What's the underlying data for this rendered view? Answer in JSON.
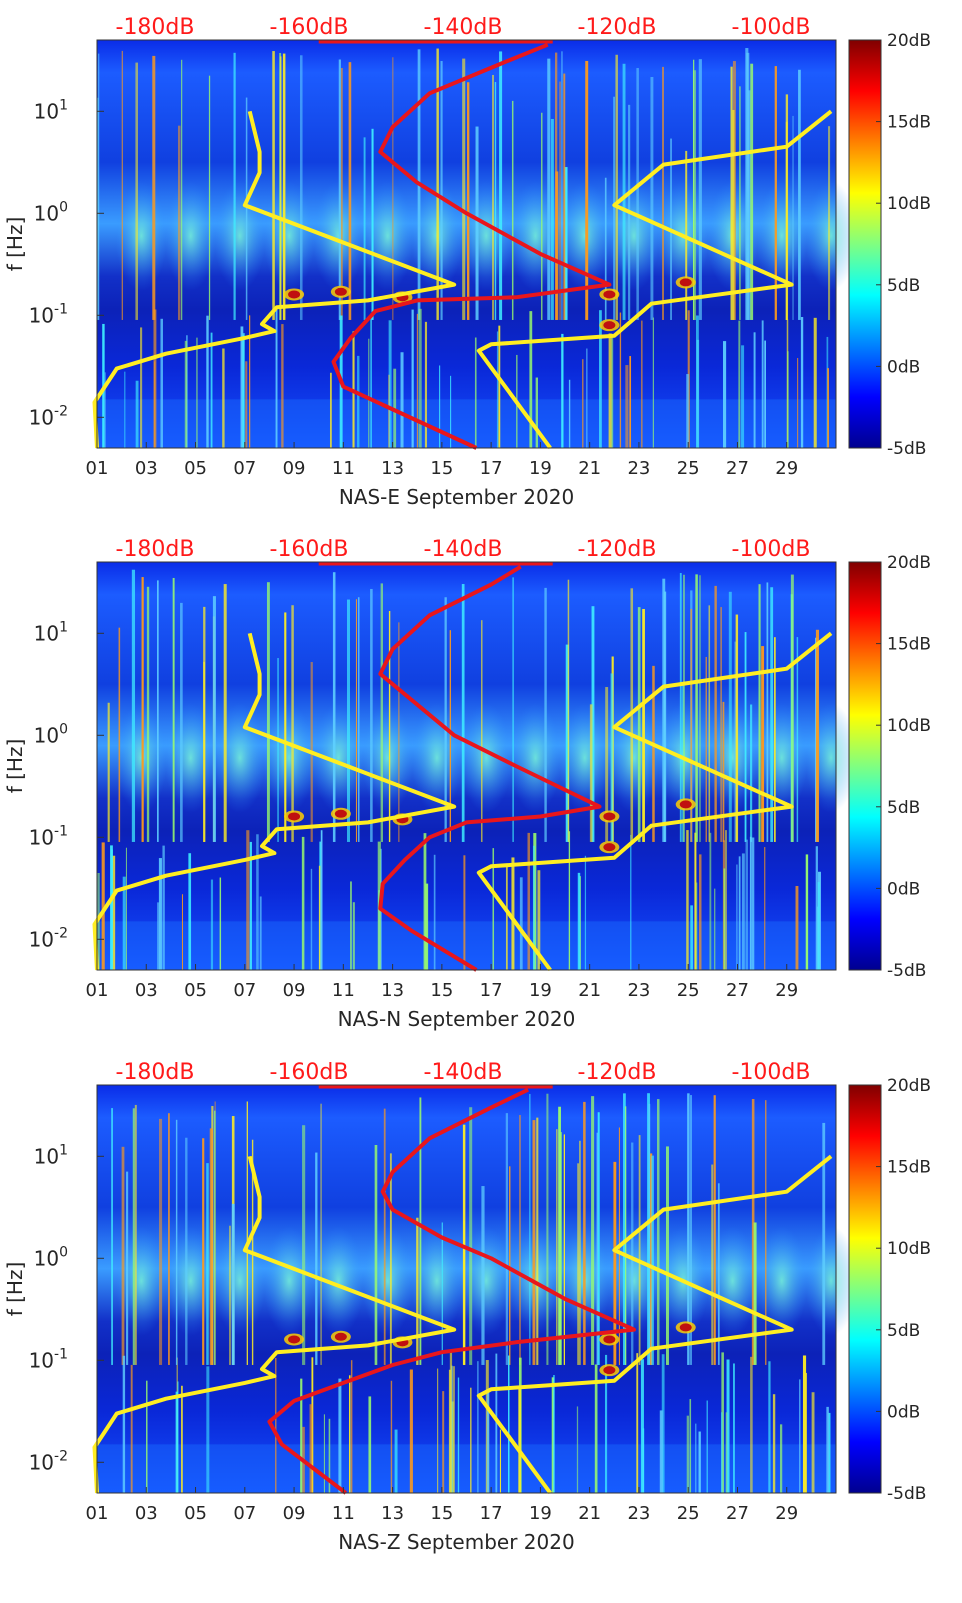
{
  "colors": {
    "db_scale": "#ff1a1a",
    "noise_model": "#ffee22",
    "psd_curve": "#e8161c",
    "axis": "#333333",
    "colormap": [
      "#00008f",
      "#0000ff",
      "#0080ff",
      "#00ffff",
      "#80ff80",
      "#ffff00",
      "#ff8000",
      "#ff0000",
      "#800000"
    ]
  },
  "chart_data": [
    {
      "type": "heatmap",
      "title": "NAS-E September 2020",
      "xlabel": "NAS-E September 2020",
      "ylabel": "f [Hz]",
      "x_ticks": [
        "01",
        "03",
        "05",
        "07",
        "09",
        "11",
        "13",
        "15",
        "17",
        "19",
        "21",
        "23",
        "25",
        "27",
        "29"
      ],
      "y_ticks": [
        "10^1",
        "10^0",
        "10^-1",
        "10^-2"
      ],
      "y_tick_values": [
        10,
        1,
        0.1,
        0.01
      ],
      "ylim": [
        0.005,
        50
      ],
      "xlim": [
        1,
        31
      ],
      "db_scale_labels": [
        "-180dB",
        "-160dB",
        "-140dB",
        "-120dB",
        "-100dB"
      ],
      "colorbar_labels": [
        "20dB",
        "15dB",
        "10dB",
        "5dB",
        "0dB",
        "-5dB"
      ],
      "colorbar_range": [
        -5,
        20
      ],
      "series": [
        {
          "name": "noise model",
          "color": "yellow",
          "points": [
            [
              1,
              0.005
            ],
            [
              0.9,
              0.014
            ],
            [
              1.8,
              0.03
            ],
            [
              3.8,
              0.042
            ],
            [
              7,
              0.06
            ],
            [
              8.2,
              0.07
            ],
            [
              7.7,
              0.082
            ],
            [
              8.3,
              0.12
            ],
            [
              12,
              0.14
            ],
            [
              15.5,
              0.2
            ],
            [
              7,
              1.2
            ],
            [
              7.6,
              2.5
            ],
            [
              7.6,
              4
            ],
            [
              7.2,
              10
            ]
          ]
        },
        {
          "name": "noise model",
          "color": "yellow",
          "points": [
            [
              19.4,
              0.005
            ],
            [
              16.5,
              0.045
            ],
            [
              17,
              0.052
            ],
            [
              22,
              0.063
            ],
            [
              23.5,
              0.13
            ],
            [
              29.2,
              0.2
            ],
            [
              22,
              1.2
            ],
            [
              24,
              3
            ],
            [
              29,
              4.5
            ],
            [
              30.8,
              10
            ]
          ]
        },
        {
          "name": "PSD",
          "color": "red",
          "points": [
            [
              16.4,
              0.005
            ],
            [
              11,
              0.02
            ],
            [
              10.6,
              0.035
            ],
            [
              11.3,
              0.06
            ],
            [
              12.3,
              0.11
            ],
            [
              14,
              0.14
            ],
            [
              18,
              0.15
            ],
            [
              21.8,
              0.2
            ],
            [
              19,
              0.4
            ],
            [
              16,
              1
            ],
            [
              14,
              2
            ],
            [
              12.5,
              4
            ],
            [
              13,
              7
            ],
            [
              14.5,
              15
            ],
            [
              17.5,
              30
            ],
            [
              19.3,
              45
            ]
          ]
        }
      ]
    },
    {
      "type": "heatmap",
      "title": "NAS-N September 2020",
      "xlabel": "NAS-N September 2020",
      "ylabel": "f [Hz]",
      "x_ticks": [
        "01",
        "03",
        "05",
        "07",
        "09",
        "11",
        "13",
        "15",
        "17",
        "19",
        "21",
        "23",
        "25",
        "27",
        "29"
      ],
      "y_ticks": [
        "10^1",
        "10^0",
        "10^-1",
        "10^-2"
      ],
      "y_tick_values": [
        10,
        1,
        0.1,
        0.01
      ],
      "ylim": [
        0.005,
        50
      ],
      "xlim": [
        1,
        31
      ],
      "db_scale_labels": [
        "-180dB",
        "-160dB",
        "-140dB",
        "-120dB",
        "-100dB"
      ],
      "colorbar_labels": [
        "20dB",
        "15dB",
        "10dB",
        "5dB",
        "0dB",
        "-5dB"
      ],
      "colorbar_range": [
        -5,
        20
      ],
      "series": [
        {
          "name": "noise model",
          "color": "yellow",
          "points": [
            [
              1,
              0.005
            ],
            [
              0.9,
              0.014
            ],
            [
              1.8,
              0.03
            ],
            [
              3.8,
              0.042
            ],
            [
              7,
              0.06
            ],
            [
              8.2,
              0.07
            ],
            [
              7.7,
              0.082
            ],
            [
              8.3,
              0.12
            ],
            [
              12,
              0.14
            ],
            [
              15.5,
              0.2
            ],
            [
              7,
              1.2
            ],
            [
              7.6,
              2.5
            ],
            [
              7.6,
              4
            ],
            [
              7.2,
              10
            ]
          ]
        },
        {
          "name": "noise model",
          "color": "yellow",
          "points": [
            [
              19.4,
              0.005
            ],
            [
              16.5,
              0.045
            ],
            [
              17,
              0.052
            ],
            [
              22,
              0.063
            ],
            [
              23.5,
              0.13
            ],
            [
              29.2,
              0.2
            ],
            [
              22,
              1.2
            ],
            [
              24,
              3
            ],
            [
              29,
              4.5
            ],
            [
              30.8,
              10
            ]
          ]
        },
        {
          "name": "PSD",
          "color": "red",
          "points": [
            [
              16.4,
              0.005
            ],
            [
              13.8,
              0.012
            ],
            [
              12.5,
              0.02
            ],
            [
              12.6,
              0.035
            ],
            [
              13.5,
              0.06
            ],
            [
              14.5,
              0.1
            ],
            [
              16,
              0.14
            ],
            [
              19,
              0.16
            ],
            [
              21.4,
              0.2
            ],
            [
              18,
              0.5
            ],
            [
              15.5,
              1
            ],
            [
              14,
              2
            ],
            [
              12.5,
              4
            ],
            [
              13,
              7
            ],
            [
              14.5,
              15
            ],
            [
              17,
              30
            ],
            [
              18.2,
              45
            ]
          ]
        }
      ]
    },
    {
      "type": "heatmap",
      "title": "NAS-Z September 2020",
      "xlabel": "NAS-Z September 2020",
      "ylabel": "f [Hz]",
      "x_ticks": [
        "01",
        "03",
        "05",
        "07",
        "09",
        "11",
        "13",
        "15",
        "17",
        "19",
        "21",
        "23",
        "25",
        "27",
        "29"
      ],
      "y_ticks": [
        "10^1",
        "10^0",
        "10^-1",
        "10^-2"
      ],
      "y_tick_values": [
        10,
        1,
        0.1,
        0.01
      ],
      "ylim": [
        0.005,
        50
      ],
      "xlim": [
        1,
        31
      ],
      "db_scale_labels": [
        "-180dB",
        "-160dB",
        "-140dB",
        "-120dB",
        "-100dB"
      ],
      "colorbar_labels": [
        "20dB",
        "15dB",
        "10dB",
        "5dB",
        "0dB",
        "-5dB"
      ],
      "colorbar_range": [
        -5,
        20
      ],
      "series": [
        {
          "name": "noise model",
          "color": "yellow",
          "points": [
            [
              1,
              0.005
            ],
            [
              0.9,
              0.014
            ],
            [
              1.8,
              0.03
            ],
            [
              3.8,
              0.042
            ],
            [
              7,
              0.06
            ],
            [
              8.2,
              0.07
            ],
            [
              7.7,
              0.082
            ],
            [
              8.3,
              0.12
            ],
            [
              12,
              0.14
            ],
            [
              15.5,
              0.2
            ],
            [
              7,
              1.2
            ],
            [
              7.6,
              2.5
            ],
            [
              7.6,
              4
            ],
            [
              7.2,
              10
            ]
          ]
        },
        {
          "name": "noise model",
          "color": "yellow",
          "points": [
            [
              19.4,
              0.005
            ],
            [
              16.5,
              0.045
            ],
            [
              17,
              0.052
            ],
            [
              22,
              0.063
            ],
            [
              23.5,
              0.13
            ],
            [
              29.2,
              0.2
            ],
            [
              22,
              1.2
            ],
            [
              24,
              3
            ],
            [
              29,
              4.5
            ],
            [
              30.8,
              10
            ]
          ]
        },
        {
          "name": "PSD",
          "color": "red",
          "points": [
            [
              11.1,
              0.005
            ],
            [
              8.5,
              0.015
            ],
            [
              8,
              0.025
            ],
            [
              9,
              0.04
            ],
            [
              11,
              0.06
            ],
            [
              13,
              0.09
            ],
            [
              15,
              0.12
            ],
            [
              18,
              0.15
            ],
            [
              22.8,
              0.2
            ],
            [
              20,
              0.4
            ],
            [
              17,
              1
            ],
            [
              15,
              1.6
            ],
            [
              13,
              3
            ],
            [
              12.6,
              4.5
            ],
            [
              13,
              7
            ],
            [
              14.5,
              15
            ],
            [
              17,
              30
            ],
            [
              18.5,
              45
            ]
          ]
        }
      ]
    }
  ]
}
